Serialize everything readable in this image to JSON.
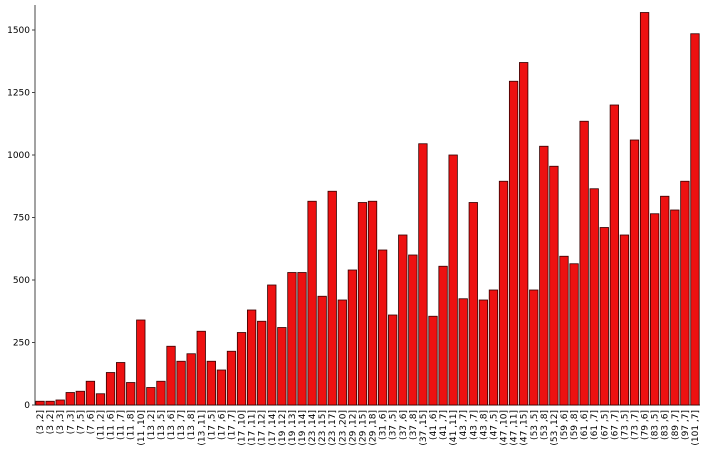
{
  "chart_data": {
    "type": "bar",
    "color": "#ee1111",
    "categories": [
      "(3 ,2]",
      "(3 ,2]",
      "(3 ,3]",
      "(7 ,3]",
      "(7 ,5]",
      "(7 ,6]",
      "(11 ,2]",
      "(11 ,6]",
      "(11 ,7]",
      "(11 ,8]",
      "(11 ,10]",
      "(13 ,2]",
      "(13 ,5]",
      "(13 ,6]",
      "(13 ,7]",
      "(13 ,8]",
      "(13 ,11]",
      "(17 ,5]",
      "(17 ,6]",
      "(17 ,7]",
      "(17 ,10]",
      "(17 ,11]",
      "(17 ,12]",
      "(17 ,14]",
      "(19 ,12]",
      "(19 ,13]",
      "(19 ,14]",
      "(23 ,14]",
      "(23 ,15]",
      "(23 ,17]",
      "(23 ,20]",
      "(29 ,12]",
      "(29 ,15]",
      "(29 ,18]",
      "(31 ,6]",
      "(37 ,5]",
      "(37 ,6]",
      "(37 ,8]",
      "(37 ,15]",
      "(41 ,6]",
      "(41 ,7]",
      "(41 ,11]",
      "(43 ,7]",
      "(43 ,7]",
      "(43 ,8]",
      "(47 ,5]",
      "(47 ,10]",
      "(47 ,11]",
      "(47 ,15]",
      "(53 ,5]",
      "(53 ,8]",
      "(53 ,12]",
      "(59 ,6]",
      "(59 ,8]",
      "(61 ,6]",
      "(61 ,7]",
      "(67 ,5]",
      "(67 ,7]",
      "(73 ,5]",
      "(73 ,7]",
      "(79 ,6]",
      "(83 ,5]",
      "(83 ,6]",
      "(89 ,7]",
      "(97 ,7]",
      "(101 ,7]"
    ],
    "values": [
      15,
      15,
      20,
      50,
      55,
      95,
      45,
      130,
      170,
      90,
      340,
      70,
      95,
      235,
      175,
      205,
      295,
      175,
      140,
      215,
      290,
      380,
      335,
      480,
      310,
      530,
      530,
      815,
      435,
      855,
      420,
      540,
      810,
      815,
      620,
      360,
      680,
      600,
      1045,
      355,
      555,
      1000,
      425,
      810,
      420,
      460,
      895,
      1295,
      1370,
      460,
      1035,
      955,
      595,
      565,
      1135,
      865,
      710,
      1200,
      680,
      1060,
      1570,
      765,
      835,
      780,
      895,
      1485
    ],
    "ylim": [
      0,
      1600
    ],
    "yticks": [
      0,
      250,
      500,
      750,
      1000,
      1250,
      1500
    ]
  }
}
